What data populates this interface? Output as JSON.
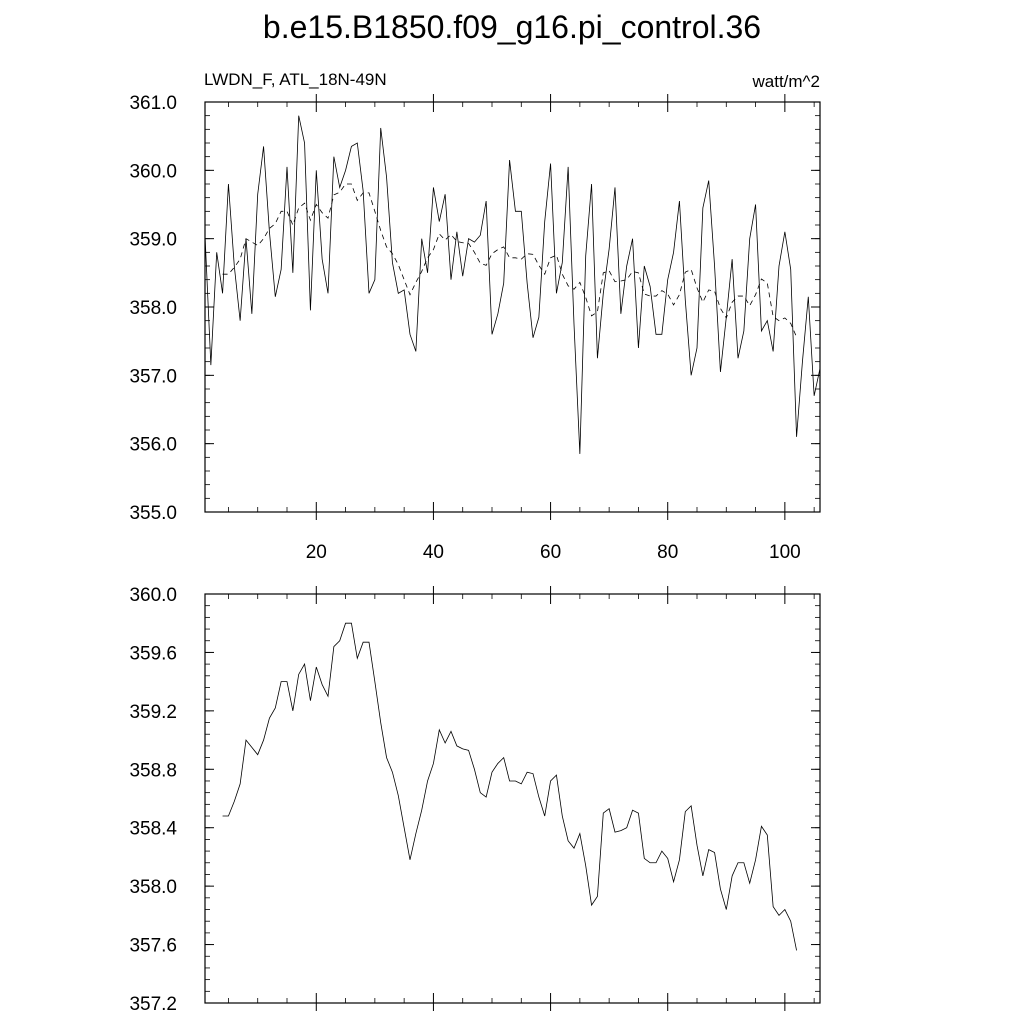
{
  "title": "b.e15.B1850.f09_g16.pi_control.36",
  "left_string": "LWDN_F, ATL_18N-49N",
  "units": "watt/m^2",
  "chart_data": [
    {
      "type": "line",
      "x_ticks": [
        20,
        40,
        60,
        80,
        100
      ],
      "x_tick_labels": [
        "20",
        "40",
        "60",
        "80",
        "100"
      ],
      "xlim": [
        1,
        106
      ],
      "y_ticks": [
        "361.0",
        "360.0",
        "359.0",
        "358.0",
        "357.0",
        "356.0",
        "355.0"
      ],
      "ylim": [
        355.0,
        361.0
      ],
      "series": [
        {
          "style": "solid",
          "x": [
            1,
            2,
            3,
            4,
            5,
            6,
            7,
            8,
            9,
            10,
            11,
            12,
            13,
            14,
            15,
            16,
            17,
            18,
            19,
            20,
            21,
            22,
            23,
            24,
            25,
            26,
            27,
            28,
            29,
            30,
            31,
            32,
            33,
            34,
            35,
            36,
            37,
            38,
            39,
            40,
            41,
            42,
            43,
            44,
            45,
            46,
            47,
            48,
            49,
            50,
            51,
            52,
            53,
            54,
            55,
            56,
            57,
            58,
            59,
            60,
            61,
            62,
            63,
            64,
            65,
            66,
            67,
            68,
            69,
            70,
            71,
            72,
            73,
            74,
            75,
            76,
            77,
            78,
            79,
            80,
            81,
            82,
            83,
            84,
            85,
            86,
            87,
            88,
            89,
            90,
            91,
            92,
            93,
            94,
            95,
            96,
            97,
            98,
            99,
            100,
            101,
            102,
            103,
            104,
            105,
            106
          ],
          "values": [
            359.05,
            357.15,
            358.8,
            358.2,
            359.8,
            358.6,
            357.8,
            359.0,
            357.9,
            359.65,
            360.35,
            359.1,
            358.15,
            358.55,
            360.05,
            358.5,
            360.8,
            360.4,
            357.95,
            360.0,
            358.7,
            358.2,
            360.2,
            359.75,
            360.0,
            360.35,
            360.4,
            359.7,
            358.2,
            358.4,
            360.62,
            359.9,
            358.65,
            358.2,
            358.25,
            357.6,
            357.35,
            359.0,
            358.5,
            359.75,
            359.25,
            359.65,
            358.4,
            359.1,
            358.45,
            359.0,
            358.95,
            359.05,
            359.55,
            357.6,
            357.9,
            358.35,
            360.15,
            359.4,
            359.4,
            358.35,
            357.55,
            357.85,
            359.25,
            360.1,
            358.2,
            358.65,
            360.05,
            357.75,
            355.85,
            358.75,
            359.8,
            357.25,
            358.2,
            358.85,
            359.75,
            357.9,
            358.6,
            359.0,
            357.4,
            358.6,
            358.3,
            357.6,
            357.6,
            358.4,
            358.8,
            359.55,
            358.1,
            357.0,
            357.4,
            359.45,
            359.85,
            358.6,
            357.05,
            357.85,
            358.7,
            357.25,
            357.65,
            359.0,
            359.5,
            357.65,
            357.8,
            357.35,
            358.6,
            359.1,
            358.55,
            356.1,
            357.2,
            358.15,
            356.7,
            357.1
          ]
        },
        {
          "style": "dashed",
          "x": [
            1,
            2,
            3,
            4,
            5,
            6,
            7,
            8,
            9,
            10,
            11,
            12,
            13,
            14,
            15,
            16,
            17,
            18,
            19,
            20,
            21,
            22,
            23,
            24,
            25,
            26,
            27,
            28,
            29,
            30,
            31,
            32,
            33,
            34,
            35,
            36,
            37,
            38,
            39,
            40,
            41,
            42,
            43,
            44,
            45,
            46,
            47,
            48,
            49,
            50,
            51,
            52,
            53,
            54,
            55,
            56,
            57,
            58,
            59,
            60,
            61,
            62,
            63,
            64,
            65,
            66,
            67,
            68,
            69,
            70,
            71,
            72,
            73,
            74,
            75,
            76,
            77,
            78,
            79,
            80,
            81,
            82,
            83,
            84,
            85,
            86,
            87,
            88,
            89,
            90,
            91,
            92,
            93,
            94,
            95,
            96,
            97,
            98,
            99,
            100,
            101,
            102,
            103,
            104,
            105
          ],
          "values": [
            null,
            null,
            null,
            358.48,
            358.48,
            358.58,
            358.7,
            359.0,
            358.95,
            358.9,
            359.0,
            359.15,
            359.22,
            359.4,
            359.4,
            359.2,
            359.45,
            359.52,
            359.27,
            359.5,
            359.38,
            359.3,
            359.64,
            359.68,
            359.8,
            359.8,
            359.56,
            359.67,
            359.67,
            359.4,
            359.12,
            358.88,
            358.78,
            358.62,
            358.4,
            358.18,
            358.36,
            358.52,
            358.72,
            358.84,
            359.07,
            358.98,
            359.06,
            358.96,
            358.94,
            358.93,
            358.8,
            358.64,
            358.61,
            358.78,
            358.84,
            358.88,
            358.72,
            358.72,
            358.7,
            358.78,
            358.77,
            358.61,
            358.48,
            358.72,
            358.76,
            358.48,
            358.31,
            358.26,
            358.36,
            358.14,
            357.87,
            357.93,
            358.5,
            358.53,
            358.37,
            358.38,
            358.4,
            358.52,
            358.5,
            358.19,
            358.16,
            358.16,
            358.24,
            358.19,
            358.03,
            358.18,
            358.51,
            358.55,
            358.28,
            358.07,
            358.25,
            358.23,
            357.98,
            357.84,
            358.07,
            358.16,
            358.16,
            358.02,
            358.18,
            358.41,
            358.35,
            357.86,
            357.8,
            357.84,
            357.76,
            357.56,
            null,
            null,
            null
          ]
        }
      ]
    },
    {
      "type": "line",
      "xlim": [
        1,
        106
      ],
      "y_ticks": [
        "360.0",
        "359.6",
        "359.2",
        "358.8",
        "358.4",
        "358.0",
        "357.6",
        "357.2"
      ],
      "ylim": [
        357.2,
        360.0
      ],
      "series": [
        {
          "style": "solid",
          "x": [
            4,
            5,
            6,
            7,
            8,
            9,
            10,
            11,
            12,
            13,
            14,
            15,
            16,
            17,
            18,
            19,
            20,
            21,
            22,
            23,
            24,
            25,
            26,
            27,
            28,
            29,
            30,
            31,
            32,
            33,
            34,
            35,
            36,
            37,
            38,
            39,
            40,
            41,
            42,
            43,
            44,
            45,
            46,
            47,
            48,
            49,
            50,
            51,
            52,
            53,
            54,
            55,
            56,
            57,
            58,
            59,
            60,
            61,
            62,
            63,
            64,
            65,
            66,
            67,
            68,
            69,
            70,
            71,
            72,
            73,
            74,
            75,
            76,
            77,
            78,
            79,
            80,
            81,
            82,
            83,
            84,
            85,
            86,
            87,
            88,
            89,
            90,
            91,
            92,
            93,
            94,
            95,
            96,
            97,
            98,
            99,
            100,
            101,
            102
          ],
          "values": [
            358.48,
            358.48,
            358.58,
            358.7,
            359.0,
            358.95,
            358.9,
            359.0,
            359.15,
            359.22,
            359.4,
            359.4,
            359.2,
            359.45,
            359.52,
            359.27,
            359.5,
            359.38,
            359.3,
            359.64,
            359.68,
            359.8,
            359.8,
            359.56,
            359.67,
            359.67,
            359.4,
            359.12,
            358.88,
            358.78,
            358.62,
            358.4,
            358.18,
            358.36,
            358.52,
            358.72,
            358.84,
            359.07,
            358.98,
            359.06,
            358.96,
            358.94,
            358.93,
            358.8,
            358.64,
            358.61,
            358.78,
            358.84,
            358.88,
            358.72,
            358.72,
            358.7,
            358.78,
            358.77,
            358.61,
            358.48,
            358.72,
            358.76,
            358.48,
            358.31,
            358.26,
            358.36,
            358.14,
            357.87,
            357.93,
            358.5,
            358.53,
            358.37,
            358.38,
            358.4,
            358.52,
            358.5,
            358.19,
            358.16,
            358.16,
            358.24,
            358.19,
            358.03,
            358.18,
            358.51,
            358.55,
            358.28,
            358.07,
            358.25,
            358.23,
            357.98,
            357.84,
            358.07,
            358.16,
            358.16,
            358.02,
            358.18,
            358.41,
            358.35,
            357.86,
            357.8,
            357.84,
            357.76,
            357.56
          ]
        }
      ]
    }
  ]
}
